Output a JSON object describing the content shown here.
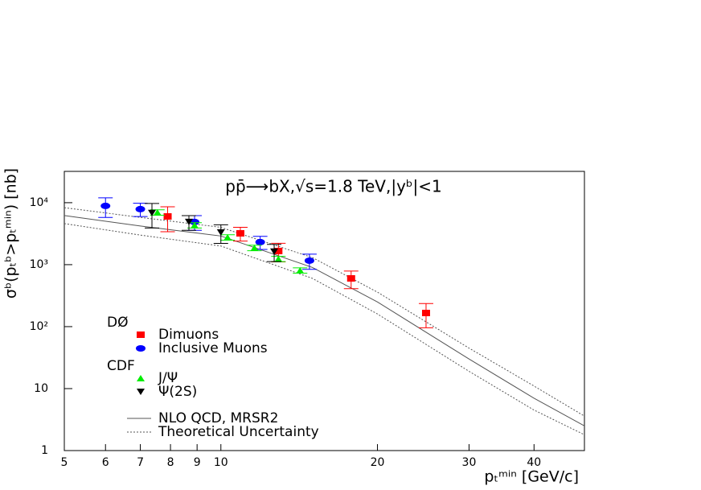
{
  "chart_data": {
    "type": "scatter",
    "title": "pp̄⟶bX,√s=1.8 TeV,|yᵇ|<1",
    "x_label": "pₜᵐⁱⁿ [GeV/c]",
    "y_label": "σᵇ(pₜᵇ>pₜᵐⁱⁿ) [nb]",
    "log_x": true,
    "log_y": true,
    "xlim": [
      5,
      50
    ],
    "ylim": [
      1,
      32000
    ],
    "xticks": [
      5,
      6,
      7,
      8,
      9,
      10,
      20,
      30,
      40
    ],
    "yticks": [
      1,
      10,
      {
        "value": 100,
        "label": "10²"
      },
      {
        "value": 1000,
        "label": "10³"
      },
      {
        "value": 10000,
        "label": "10⁴"
      }
    ],
    "groups": [
      "DØ",
      "CDF"
    ],
    "series": [
      {
        "name": "Dimuons",
        "group": 0,
        "marker": "square",
        "color": "#ff0000",
        "x": [
          7.9,
          10.9,
          12.9,
          17.8,
          24.8
        ],
        "values": [
          6000,
          3200,
          1660,
          600,
          166
        ],
        "errors": [
          2600,
          800,
          550,
          190,
          70
        ]
      },
      {
        "name": "Inclusive Muons",
        "group": 0,
        "marker": "circle",
        "color": "#0000ff",
        "x": [
          6,
          7,
          8.9,
          11.9,
          14.8
        ],
        "values": [
          8870,
          7870,
          4880,
          2310,
          1160
        ],
        "errors": [
          3100,
          1900,
          1300,
          550,
          320
        ]
      },
      {
        "name": "J/Ψ",
        "group": 1,
        "marker": "triangle-up",
        "color": "#00ee00",
        "x": [
          7.55,
          8.9,
          10.3,
          11.6,
          12.9,
          14.2
        ],
        "values": [
          6980,
          4330,
          2760,
          1870,
          1240,
          810
        ],
        "errors": [
          700,
          430,
          280,
          190,
          120,
          80
        ]
      },
      {
        "name": "Ψ(2S)",
        "group": 1,
        "marker": "triangle-down",
        "color": "#000000",
        "x": [
          7.37,
          8.68,
          10.0,
          12.66
        ],
        "values": [
          6800,
          4880,
          3300,
          1620
        ],
        "errors": [
          2900,
          1300,
          1100,
          500
        ]
      }
    ],
    "lines": [
      {
        "name": "NLO QCD, MRSR2",
        "dash": false,
        "color": "#555555",
        "x": [
          5,
          7,
          10,
          15,
          20,
          30,
          40,
          50
        ],
        "values": [
          6200,
          4200,
          2900,
          900,
          250,
          30,
          7,
          2.5
        ]
      },
      {
        "name": "Theoretical Uncertainty",
        "dash": true,
        "color": "#555555",
        "x": [
          5,
          7,
          10,
          15,
          20,
          30,
          40,
          50
        ],
        "values_upper": [
          8300,
          5800,
          4000,
          1300,
          360,
          45,
          11,
          3.6
        ],
        "values_lower": [
          4600,
          3000,
          2000,
          600,
          160,
          19,
          4.5,
          1.8
        ]
      }
    ]
  }
}
